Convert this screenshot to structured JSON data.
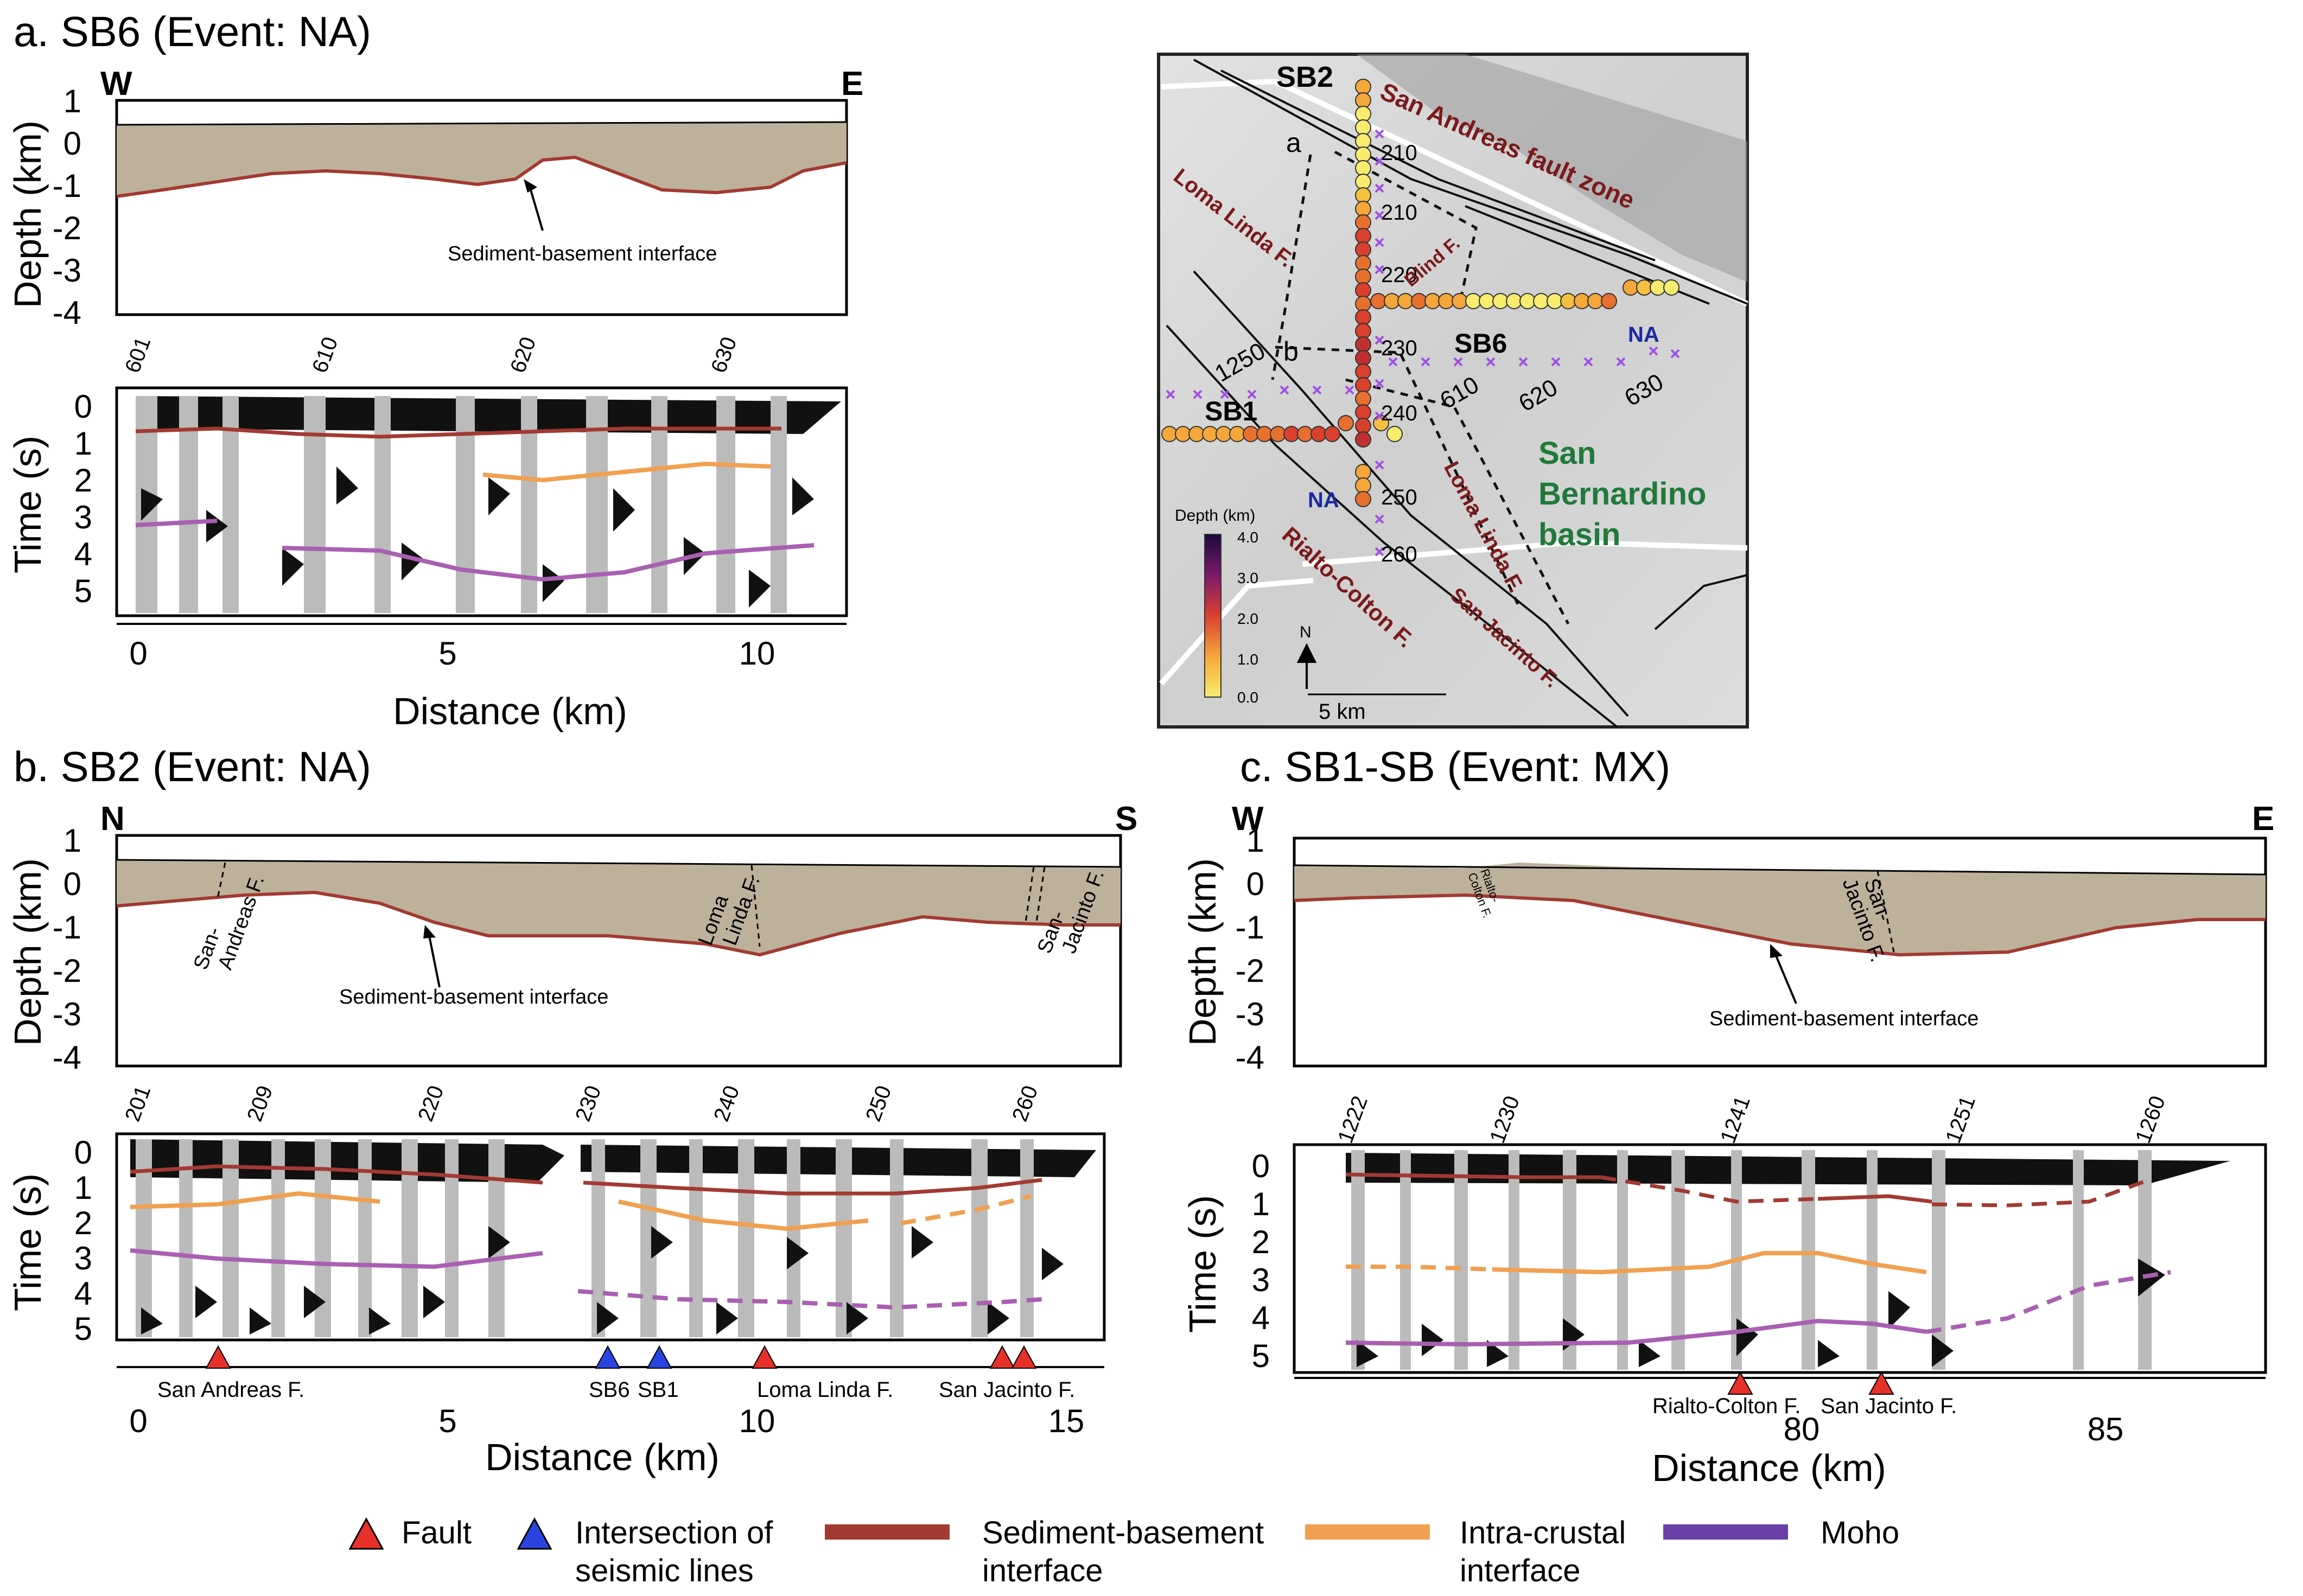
{
  "figure": {
    "panel_a": {
      "title": "a. SB6 (Event: NA)",
      "left_dir": "W",
      "right_dir": "E",
      "depth_axis_label": "Depth (km)",
      "depth_ticks": [
        "1",
        "0",
        "-1",
        "-2",
        "-3",
        "-4"
      ],
      "annotation": "Sediment-basement interface",
      "station_labels": [
        "601",
        "610",
        "620",
        "630"
      ],
      "time_axis_label": "Time (s)",
      "time_ticks": [
        "0",
        "1",
        "2",
        "3",
        "4",
        "5"
      ],
      "distance_ticks": [
        "0",
        "5",
        "10"
      ],
      "distance_label": "Distance (km)"
    },
    "panel_b": {
      "title": "b. SB2 (Event: NA)",
      "left_dir": "N",
      "right_dir": "S",
      "depth_axis_label": "Depth (km)",
      "depth_ticks": [
        "1",
        "0",
        "-1",
        "-2",
        "-3",
        "-4"
      ],
      "annotation": "Sediment-basement interface",
      "fault_labels": {
        "san_andreas": "San-\nAndreas F.",
        "san_andreas_l1": "San-",
        "san_andreas_l2": "Andreas F.",
        "loma_l1": "Loma",
        "loma_l2": "Linda F.",
        "sanj_l1": "San-",
        "sanj_l2": "Jacinto F."
      },
      "station_labels": [
        "201",
        "209",
        "220",
        "230",
        "240",
        "250",
        "260"
      ],
      "time_axis_label": "Time (s)",
      "time_ticks": [
        "0",
        "1",
        "2",
        "3",
        "4",
        "5"
      ],
      "markers": [
        "San Andreas F.",
        "SB6",
        "SB1",
        "Loma Linda F.",
        "San Jacinto F."
      ],
      "distance_ticks": [
        "0",
        "5",
        "10",
        "15"
      ],
      "distance_label": "Distance (km)"
    },
    "panel_c": {
      "title": "c. SB1-SB (Event: MX)",
      "left_dir": "W",
      "right_dir": "E",
      "depth_axis_label": "Depth (km)",
      "depth_ticks": [
        "1",
        "0",
        "-1",
        "-2",
        "-3",
        "-4"
      ],
      "annotation": "Sediment-basement interface",
      "fault_labels": {
        "rialto_l1": "Rialto-",
        "rialto_l2": "Colton F.",
        "sanj_l1": "San-",
        "sanj_l2": "Jacinto F."
      },
      "station_labels": [
        "1222",
        "1230",
        "1241",
        "1251",
        "1260"
      ],
      "time_axis_label": "Time (s)",
      "time_ticks": [
        "0",
        "1",
        "2",
        "3",
        "4",
        "5"
      ],
      "markers": [
        "Rialto-Colton F.",
        "San Jacinto F."
      ],
      "distance_ticks": [
        "80",
        "85"
      ],
      "distance_label": "Distance (km)"
    },
    "map": {
      "line_labels": {
        "sb2": "SB2",
        "sb6": "SB6",
        "sb1": "SB1"
      },
      "profile_letters": {
        "a": "a",
        "b": "b"
      },
      "station_numbers": [
        "210",
        "210",
        "220",
        "230",
        "240",
        "250",
        "260",
        "610",
        "620",
        "630",
        "1250"
      ],
      "na_label": "NA",
      "faults": {
        "san_andreas": "San Andreas fault zone",
        "loma_linda_1": "Loma Linda F.",
        "loma_linda_2": "Loma Linda F.",
        "blind": "Blind F.",
        "rialto": "Rialto-Colton F.",
        "san_jacinto": "San Jacinto F."
      },
      "basin_l1": "San",
      "basin_l2": "Bernardino",
      "basin_l3": "basin",
      "colorbar_title": "Depth (km)",
      "colorbar_ticks": [
        "4.0",
        "3.0",
        "2.0",
        "1.0",
        "0.0"
      ],
      "north": "N",
      "scale": "5 km"
    },
    "legend": {
      "fault": "Fault",
      "intersection_l1": "Intersection of",
      "intersection_l2": "seismic lines",
      "sed_l1": "Sediment-basement",
      "sed_l2": "interface",
      "intra_l1": "Intra-crustal",
      "intra_l2": "interface",
      "moho": "Moho"
    },
    "colors": {
      "sediment_fill": "#bdb19c",
      "sediment_line": "#a23a32",
      "intra": "#f0a050",
      "moho": "#a860b0",
      "fault_marker": "#e8302a",
      "intersection_marker": "#2a44e0",
      "fault_text": "#7a1a1a",
      "basin_text": "#1f7a3a",
      "na_text": "#1a2aa0"
    }
  }
}
